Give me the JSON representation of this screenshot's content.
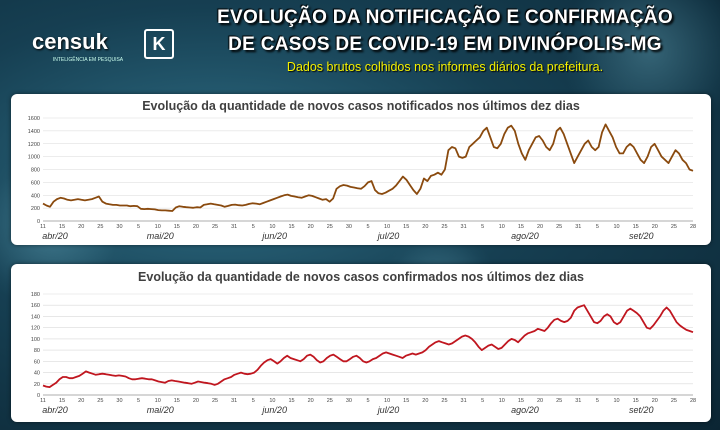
{
  "header": {
    "title_line1": "EVOLUÇÃO DA NOTIFICAÇÃO E CONFIRMAÇÃO",
    "title_line2": "DE CASOS DE COVID-19 EM DIVINÓPOLIS-MG",
    "subtitle": "Dados brutos colhidos nos informes diários da prefeitura."
  },
  "logo": {
    "text": "censuk",
    "mark": "K",
    "tagline": "INTELIGÊNCIA EM PESQUISA"
  },
  "colors": {
    "notified": "#8a4a0e",
    "confirmed": "#c0161f",
    "grid": "#d9d9d9"
  },
  "chart_data": [
    {
      "type": "line",
      "title": "Evolução da quantidade de novos casos notificados nos últimos dez dias",
      "ylim": [
        0,
        1600
      ],
      "yticks": [
        0,
        200,
        400,
        600,
        800,
        1000,
        1200,
        1400,
        1600
      ],
      "x_tick_labels": [
        "11",
        "15",
        "20",
        "25",
        "30",
        "5",
        "10",
        "15",
        "20",
        "25",
        "31",
        "5",
        "10",
        "15",
        "20",
        "25",
        "30",
        "5",
        "10",
        "15",
        "20",
        "25",
        "31",
        "5",
        "10",
        "15",
        "20",
        "25",
        "31",
        "5",
        "10",
        "15",
        "20",
        "25",
        "28"
      ],
      "months": [
        "abr/20",
        "mai/20",
        "jun/20",
        "jul/20",
        "ago/20",
        "set/20"
      ],
      "x_start": "2020-04-11",
      "x_end": "2020-09-28",
      "series": [
        {
          "values": [
            270,
            240,
            220,
            300,
            340,
            360,
            350,
            330,
            320,
            330,
            340,
            330,
            320,
            330,
            340,
            360,
            380,
            300,
            270,
            260,
            250,
            250,
            240,
            240,
            240,
            230,
            235,
            230,
            190,
            185,
            190,
            185,
            180,
            170,
            165,
            165,
            160,
            155,
            210,
            230,
            220,
            215,
            210,
            205,
            215,
            210,
            250,
            260,
            270,
            260,
            250,
            240,
            220,
            235,
            250,
            255,
            245,
            240,
            250,
            265,
            275,
            270,
            260,
            280,
            300,
            320,
            340,
            360,
            380,
            400,
            410,
            390,
            380,
            370,
            360,
            380,
            400,
            390,
            370,
            350,
            330,
            340,
            300,
            350,
            500,
            540,
            560,
            550,
            530,
            520,
            510,
            500,
            540,
            600,
            620,
            480,
            430,
            420,
            440,
            470,
            500,
            550,
            620,
            690,
            640,
            560,
            480,
            420,
            500,
            660,
            620,
            700,
            720,
            750,
            720,
            800,
            1100,
            1150,
            1130,
            1000,
            980,
            1000,
            1150,
            1200,
            1250,
            1300,
            1400,
            1450,
            1300,
            1150,
            1130,
            1200,
            1350,
            1450,
            1480,
            1400,
            1200,
            1050,
            950,
            1100,
            1200,
            1300,
            1320,
            1250,
            1150,
            1100,
            1200,
            1400,
            1450,
            1350,
            1200,
            1050,
            900,
            1000,
            1100,
            1200,
            1250,
            1150,
            1100,
            1150,
            1380,
            1500,
            1400,
            1300,
            1150,
            1050,
            1050,
            1150,
            1200,
            1150,
            1050,
            950,
            900,
            1000,
            1150,
            1200,
            1100,
            1000,
            950,
            900,
            1000,
            1100,
            1050,
            950,
            900,
            800,
            780
          ]
        }
      ]
    },
    {
      "type": "line",
      "title": "Evolução da quantidade de novos casos confirmados nos últimos dez dias",
      "ylim": [
        0,
        180
      ],
      "yticks": [
        0,
        20,
        40,
        60,
        80,
        100,
        120,
        140,
        160,
        180
      ],
      "x_tick_labels": [
        "11",
        "15",
        "20",
        "25",
        "30",
        "5",
        "10",
        "15",
        "20",
        "25",
        "31",
        "5",
        "10",
        "15",
        "20",
        "25",
        "30",
        "5",
        "10",
        "15",
        "20",
        "25",
        "31",
        "5",
        "10",
        "15",
        "20",
        "25",
        "31",
        "5",
        "10",
        "15",
        "20",
        "25",
        "28"
      ],
      "months": [
        "abr/20",
        "mai/20",
        "jun/20",
        "jul/20",
        "ago/20",
        "set/20"
      ],
      "x_start": "2020-04-11",
      "x_end": "2020-09-28",
      "series": [
        {
          "values": [
            17,
            15,
            14,
            18,
            22,
            28,
            32,
            32,
            30,
            30,
            32,
            34,
            38,
            42,
            40,
            38,
            36,
            37,
            38,
            37,
            36,
            35,
            34,
            35,
            34,
            33,
            30,
            28,
            28,
            29,
            30,
            29,
            28,
            28,
            26,
            24,
            23,
            22,
            25,
            26,
            25,
            24,
            23,
            22,
            21,
            20,
            22,
            24,
            23,
            22,
            21,
            20,
            18,
            20,
            24,
            28,
            30,
            32,
            36,
            38,
            40,
            38,
            37,
            38,
            40,
            45,
            52,
            58,
            62,
            64,
            60,
            56,
            60,
            66,
            70,
            66,
            64,
            62,
            60,
            64,
            70,
            72,
            68,
            62,
            58,
            60,
            66,
            70,
            72,
            68,
            64,
            60,
            60,
            64,
            68,
            70,
            66,
            60,
            58,
            60,
            64,
            66,
            70,
            74,
            76,
            74,
            72,
            70,
            68,
            66,
            70,
            72,
            74,
            72,
            74,
            76,
            80,
            86,
            90,
            94,
            96,
            94,
            92,
            90,
            92,
            96,
            100,
            104,
            106,
            104,
            100,
            94,
            86,
            80,
            84,
            88,
            90,
            86,
            82,
            84,
            90,
            96,
            100,
            98,
            94,
            100,
            106,
            110,
            112,
            114,
            118,
            116,
            114,
            120,
            128,
            134,
            136,
            132,
            130,
            132,
            138,
            150,
            156,
            158,
            160,
            150,
            140,
            130,
            128,
            132,
            140,
            144,
            140,
            130,
            126,
            130,
            140,
            150,
            154,
            150,
            146,
            140,
            130,
            120,
            118,
            124,
            132,
            140,
            150,
            156,
            150,
            140,
            130,
            124,
            120,
            116,
            114,
            112
          ]
        }
      ]
    }
  ]
}
